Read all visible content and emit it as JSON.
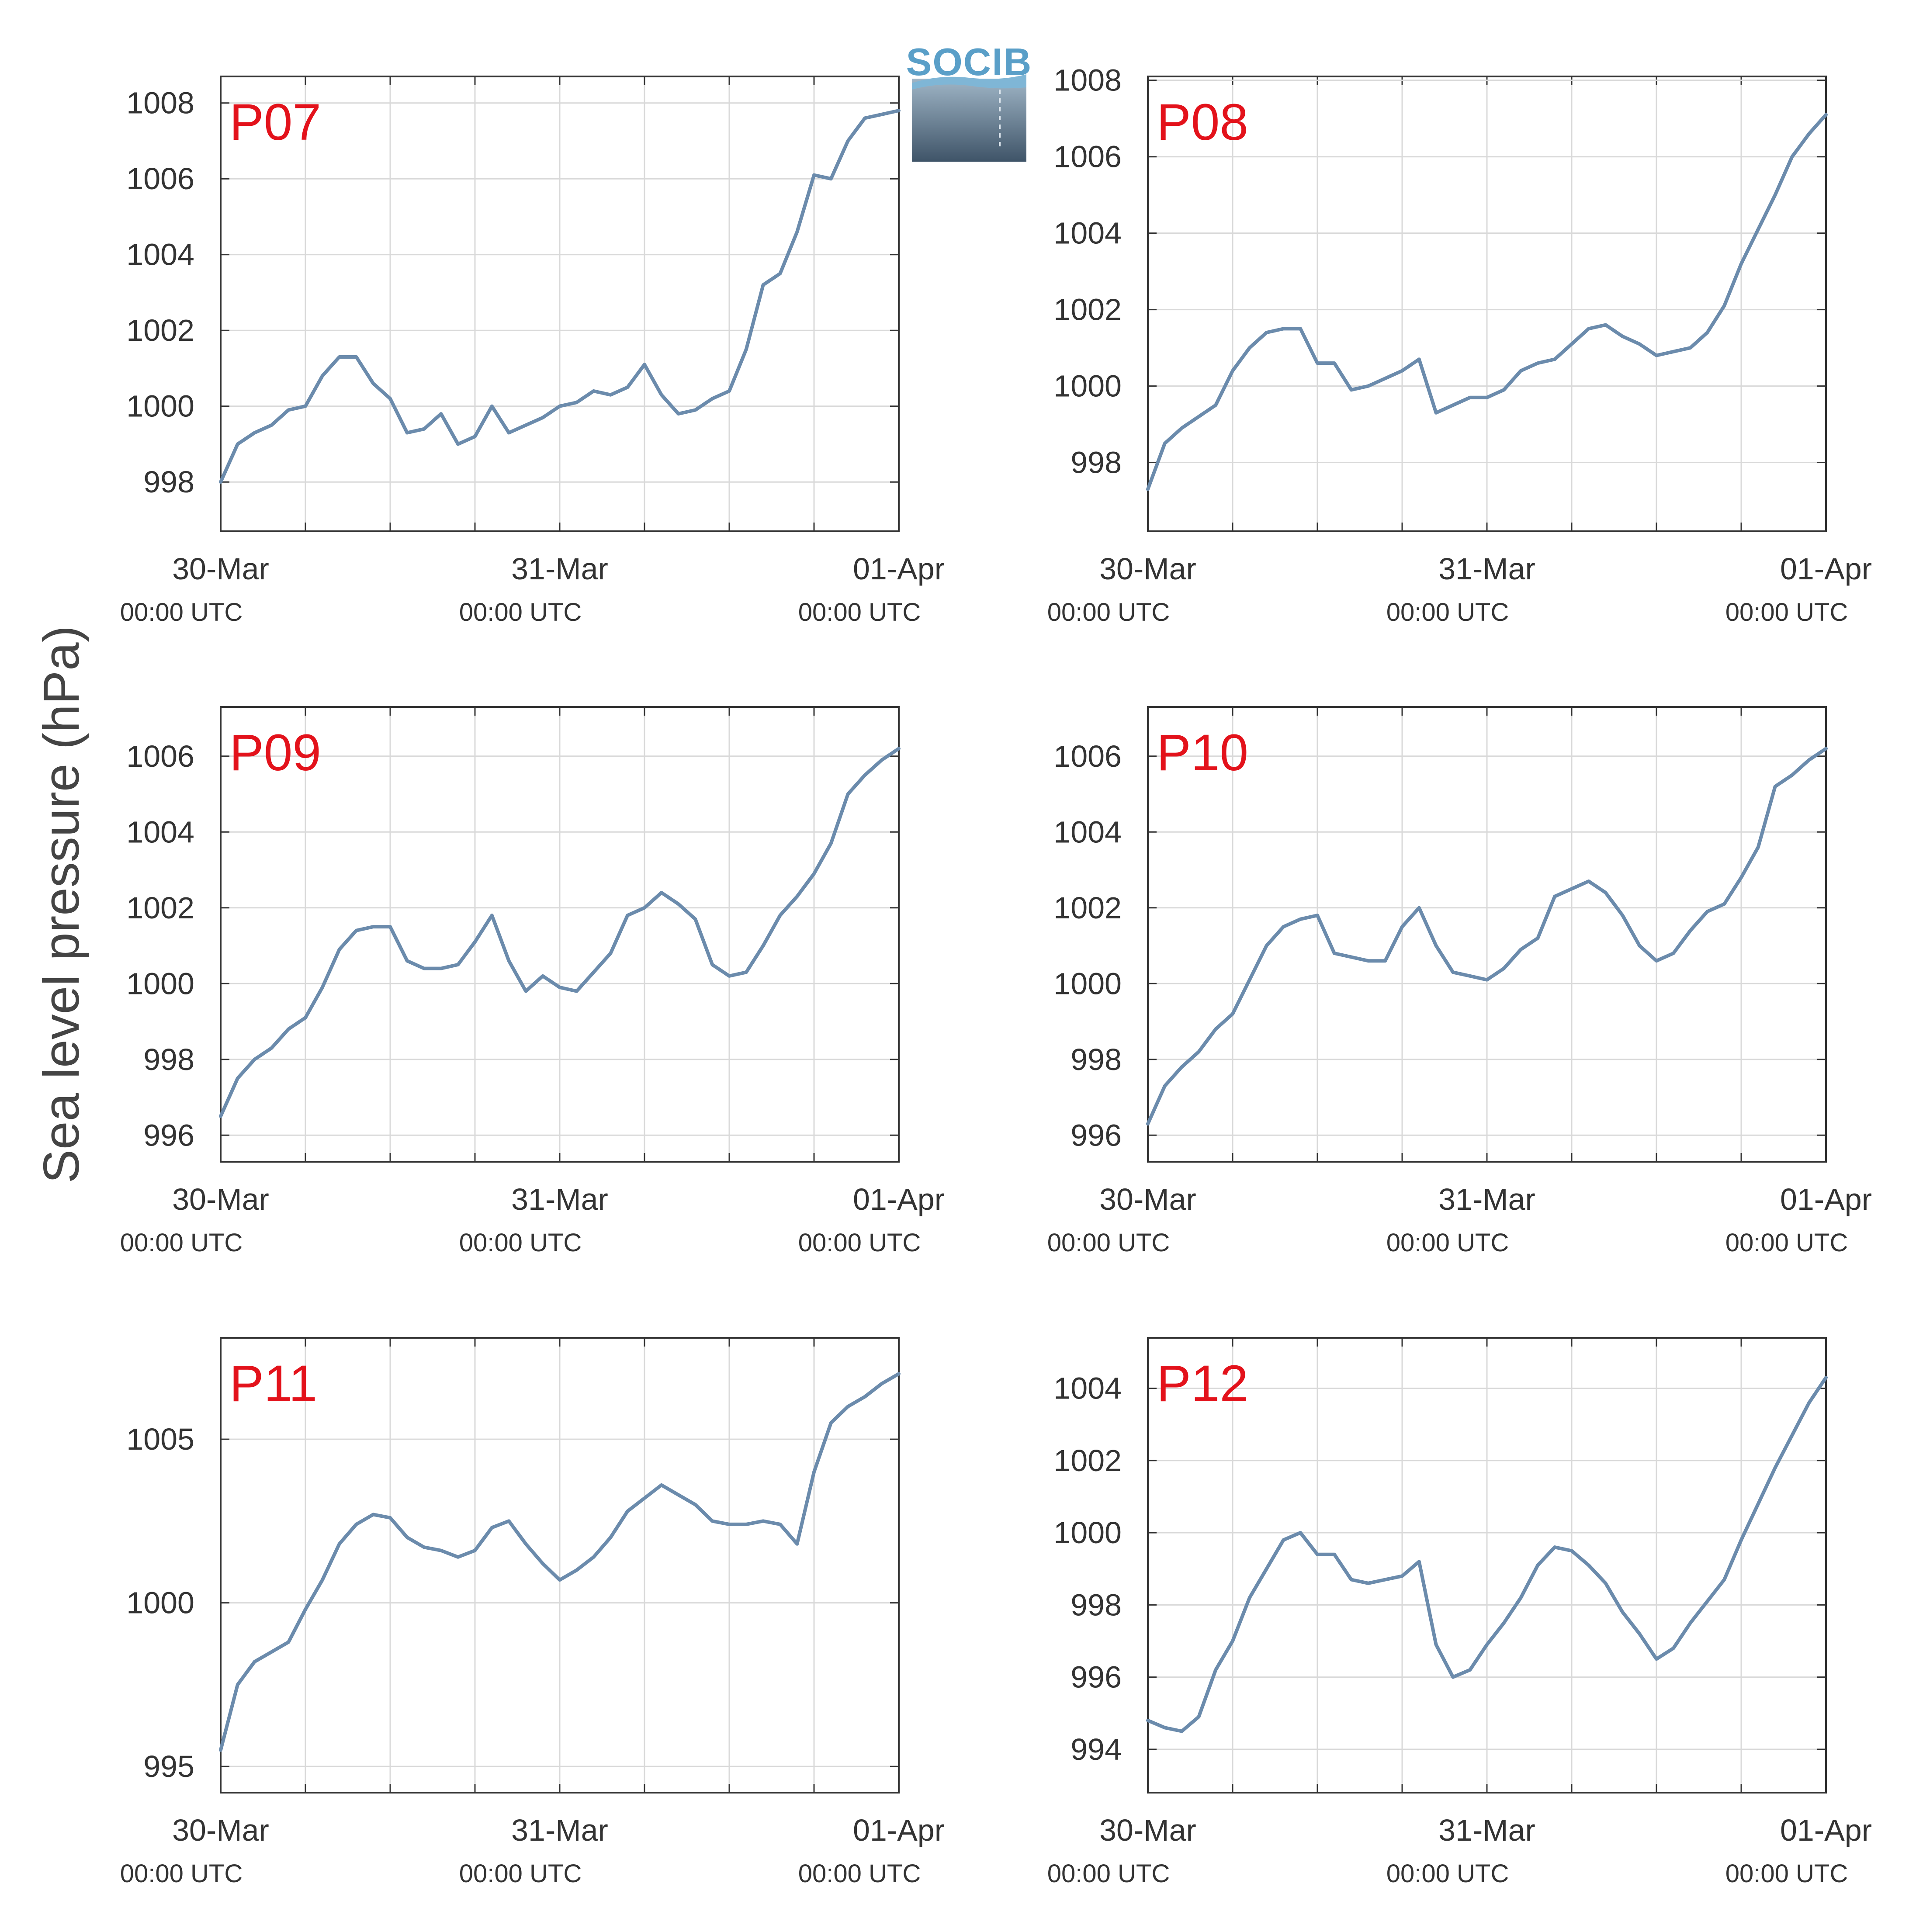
{
  "figure": {
    "ylabel": "Sea level pressure (hPa)",
    "logo_text": "SOCIB",
    "x_tick_dates": [
      "30-Mar",
      "31-Mar",
      "01-Apr"
    ],
    "x_tick_times": [
      "00:00 UTC",
      "00:00 UTC",
      "00:00 UTC"
    ],
    "colors": {
      "line": "#6b8bac",
      "panel_label": "#e3121b",
      "grid": "#d9d9d9",
      "axis": "#333333"
    }
  },
  "chart_data": [
    {
      "type": "line",
      "title": "P07",
      "x": [
        0,
        0.05,
        0.1,
        0.15,
        0.2,
        0.25,
        0.3,
        0.35,
        0.4,
        0.45,
        0.5,
        0.55,
        0.6,
        0.65,
        0.7,
        0.75,
        0.8,
        0.85,
        0.9,
        0.95,
        1.0,
        1.05,
        1.1,
        1.15,
        1.2,
        1.25,
        1.3,
        1.35,
        1.4,
        1.45,
        1.5,
        1.55,
        1.6,
        1.65,
        1.7,
        1.75,
        1.8,
        1.85,
        1.9,
        1.95,
        2.0
      ],
      "values": [
        998.0,
        999.0,
        999.3,
        999.5,
        999.9,
        1000.0,
        1000.8,
        1001.3,
        1001.3,
        1000.6,
        1000.2,
        999.3,
        999.4,
        999.8,
        999.0,
        999.2,
        1000.0,
        999.3,
        999.5,
        999.7,
        1000.0,
        1000.1,
        1000.4,
        1000.3,
        1000.5,
        1001.1,
        1000.3,
        999.8,
        999.9,
        1000.2,
        1000.4,
        1001.5,
        1003.2,
        1003.5,
        1004.6,
        1006.1,
        1006.0,
        1007.0,
        1007.6,
        1007.7,
        1007.8
      ],
      "yticks": [
        998,
        1000,
        1002,
        1004,
        1006,
        1008
      ],
      "ylim": [
        996.7,
        1008.7
      ],
      "xlim": [
        "30-Mar 00:00 UTC",
        "01-Apr 00:00 UTC"
      ]
    },
    {
      "type": "line",
      "title": "P08",
      "x": [
        0,
        0.05,
        0.1,
        0.15,
        0.2,
        0.25,
        0.3,
        0.35,
        0.4,
        0.45,
        0.5,
        0.55,
        0.6,
        0.65,
        0.7,
        0.75,
        0.8,
        0.85,
        0.9,
        0.95,
        1.0,
        1.05,
        1.1,
        1.15,
        1.2,
        1.25,
        1.3,
        1.35,
        1.4,
        1.45,
        1.5,
        1.55,
        1.6,
        1.65,
        1.7,
        1.75,
        1.8,
        1.85,
        1.9,
        1.95,
        2.0
      ],
      "values": [
        997.3,
        998.5,
        998.9,
        999.2,
        999.5,
        1000.4,
        1001.0,
        1001.4,
        1001.5,
        1001.5,
        1000.6,
        1000.6,
        999.9,
        1000.0,
        1000.2,
        1000.4,
        1000.7,
        999.3,
        999.5,
        999.7,
        999.7,
        999.9,
        1000.4,
        1000.6,
        1000.7,
        1001.1,
        1001.5,
        1001.6,
        1001.3,
        1001.1,
        1000.8,
        1000.9,
        1001.0,
        1001.4,
        1002.1,
        1003.2,
        1004.1,
        1005.0,
        1006.0,
        1006.6,
        1007.1
      ],
      "yticks": [
        998,
        1000,
        1002,
        1004,
        1006,
        1008
      ],
      "ylim": [
        996.2,
        1008.1
      ],
      "xlim": [
        "30-Mar 00:00 UTC",
        "01-Apr 00:00 UTC"
      ]
    },
    {
      "type": "line",
      "title": "P09",
      "x": [
        0,
        0.05,
        0.1,
        0.15,
        0.2,
        0.25,
        0.3,
        0.35,
        0.4,
        0.45,
        0.5,
        0.55,
        0.6,
        0.65,
        0.7,
        0.75,
        0.8,
        0.85,
        0.9,
        0.95,
        1.0,
        1.05,
        1.1,
        1.15,
        1.2,
        1.25,
        1.3,
        1.35,
        1.4,
        1.45,
        1.5,
        1.55,
        1.6,
        1.65,
        1.7,
        1.75,
        1.8,
        1.85,
        1.9,
        1.95,
        2.0
      ],
      "values": [
        996.5,
        997.5,
        998.0,
        998.3,
        998.8,
        999.1,
        999.9,
        1000.9,
        1001.4,
        1001.5,
        1001.5,
        1000.6,
        1000.4,
        1000.4,
        1000.5,
        1001.1,
        1001.8,
        1000.6,
        999.8,
        1000.2,
        999.9,
        999.8,
        1000.3,
        1000.8,
        1001.8,
        1002.0,
        1002.4,
        1002.1,
        1001.7,
        1000.5,
        1000.2,
        1000.3,
        1001.0,
        1001.8,
        1002.3,
        1002.9,
        1003.7,
        1005.0,
        1005.5,
        1005.9,
        1006.2
      ],
      "yticks": [
        996,
        998,
        1000,
        1002,
        1004,
        1006
      ],
      "ylim": [
        995.3,
        1007.3
      ],
      "xlim": [
        "30-Mar 00:00 UTC",
        "01-Apr 00:00 UTC"
      ]
    },
    {
      "type": "line",
      "title": "P10",
      "x": [
        0,
        0.05,
        0.1,
        0.15,
        0.2,
        0.25,
        0.3,
        0.35,
        0.4,
        0.45,
        0.5,
        0.55,
        0.6,
        0.65,
        0.7,
        0.75,
        0.8,
        0.85,
        0.9,
        0.95,
        1.0,
        1.05,
        1.1,
        1.15,
        1.2,
        1.25,
        1.3,
        1.35,
        1.4,
        1.45,
        1.5,
        1.55,
        1.6,
        1.65,
        1.7,
        1.75,
        1.8,
        1.85,
        1.9,
        1.95,
        2.0
      ],
      "values": [
        996.3,
        997.3,
        997.8,
        998.2,
        998.8,
        999.2,
        1000.1,
        1001.0,
        1001.5,
        1001.7,
        1001.8,
        1000.8,
        1000.7,
        1000.6,
        1000.6,
        1001.5,
        1002.0,
        1001.0,
        1000.3,
        1000.2,
        1000.1,
        1000.4,
        1000.9,
        1001.2,
        1002.3,
        1002.5,
        1002.7,
        1002.4,
        1001.8,
        1001.0,
        1000.6,
        1000.8,
        1001.4,
        1001.9,
        1002.1,
        1002.8,
        1003.6,
        1005.2,
        1005.5,
        1005.9,
        1006.2
      ],
      "yticks": [
        996,
        998,
        1000,
        1002,
        1004,
        1006
      ],
      "ylim": [
        995.3,
        1007.3
      ],
      "xlim": [
        "30-Mar 00:00 UTC",
        "01-Apr 00:00 UTC"
      ]
    },
    {
      "type": "line",
      "title": "P11",
      "x": [
        0,
        0.05,
        0.1,
        0.15,
        0.2,
        0.25,
        0.3,
        0.35,
        0.4,
        0.45,
        0.5,
        0.55,
        0.6,
        0.65,
        0.7,
        0.75,
        0.8,
        0.85,
        0.9,
        0.95,
        1.0,
        1.05,
        1.1,
        1.15,
        1.2,
        1.25,
        1.3,
        1.35,
        1.4,
        1.45,
        1.5,
        1.55,
        1.6,
        1.65,
        1.7,
        1.75,
        1.8,
        1.85,
        1.9,
        1.95,
        2.0
      ],
      "values": [
        995.5,
        997.5,
        998.2,
        998.5,
        998.8,
        999.8,
        1000.7,
        1001.8,
        1002.4,
        1002.7,
        1002.6,
        1002.0,
        1001.7,
        1001.6,
        1001.4,
        1001.6,
        1002.3,
        1002.5,
        1001.8,
        1001.2,
        1000.7,
        1001.0,
        1001.4,
        1002.0,
        1002.8,
        1003.2,
        1003.6,
        1003.3,
        1003.0,
        1002.5,
        1002.4,
        1002.4,
        1002.5,
        1002.4,
        1001.8,
        1004.0,
        1005.5,
        1006.0,
        1006.3,
        1006.7,
        1007.0
      ],
      "yticks": [
        995,
        1000,
        1005
      ],
      "ylim": [
        994.2,
        1008.1
      ],
      "xlim": [
        "30-Mar 00:00 UTC",
        "01-Apr 00:00 UTC"
      ]
    },
    {
      "type": "line",
      "title": "P12",
      "x": [
        0,
        0.05,
        0.1,
        0.15,
        0.2,
        0.25,
        0.3,
        0.35,
        0.4,
        0.45,
        0.5,
        0.55,
        0.6,
        0.65,
        0.7,
        0.75,
        0.8,
        0.85,
        0.9,
        0.95,
        1.0,
        1.05,
        1.1,
        1.15,
        1.2,
        1.25,
        1.3,
        1.35,
        1.4,
        1.45,
        1.5,
        1.55,
        1.6,
        1.65,
        1.7,
        1.75,
        1.8,
        1.85,
        1.9,
        1.95,
        2.0
      ],
      "values": [
        994.8,
        994.6,
        994.5,
        994.9,
        996.2,
        997.0,
        998.2,
        999.0,
        999.8,
        1000.0,
        999.4,
        999.4,
        998.7,
        998.6,
        998.7,
        998.8,
        999.2,
        996.9,
        996.0,
        996.2,
        996.9,
        997.5,
        998.2,
        999.1,
        999.6,
        999.5,
        999.1,
        998.6,
        997.8,
        997.2,
        996.5,
        996.8,
        997.5,
        998.1,
        998.7,
        999.8,
        1000.8,
        1001.8,
        1002.7,
        1003.6,
        1004.3
      ],
      "yticks": [
        994,
        996,
        998,
        1000,
        1002,
        1004
      ],
      "ylim": [
        992.8,
        1005.4
      ],
      "xlim": [
        "30-Mar 00:00 UTC",
        "01-Apr 00:00 UTC"
      ]
    }
  ]
}
